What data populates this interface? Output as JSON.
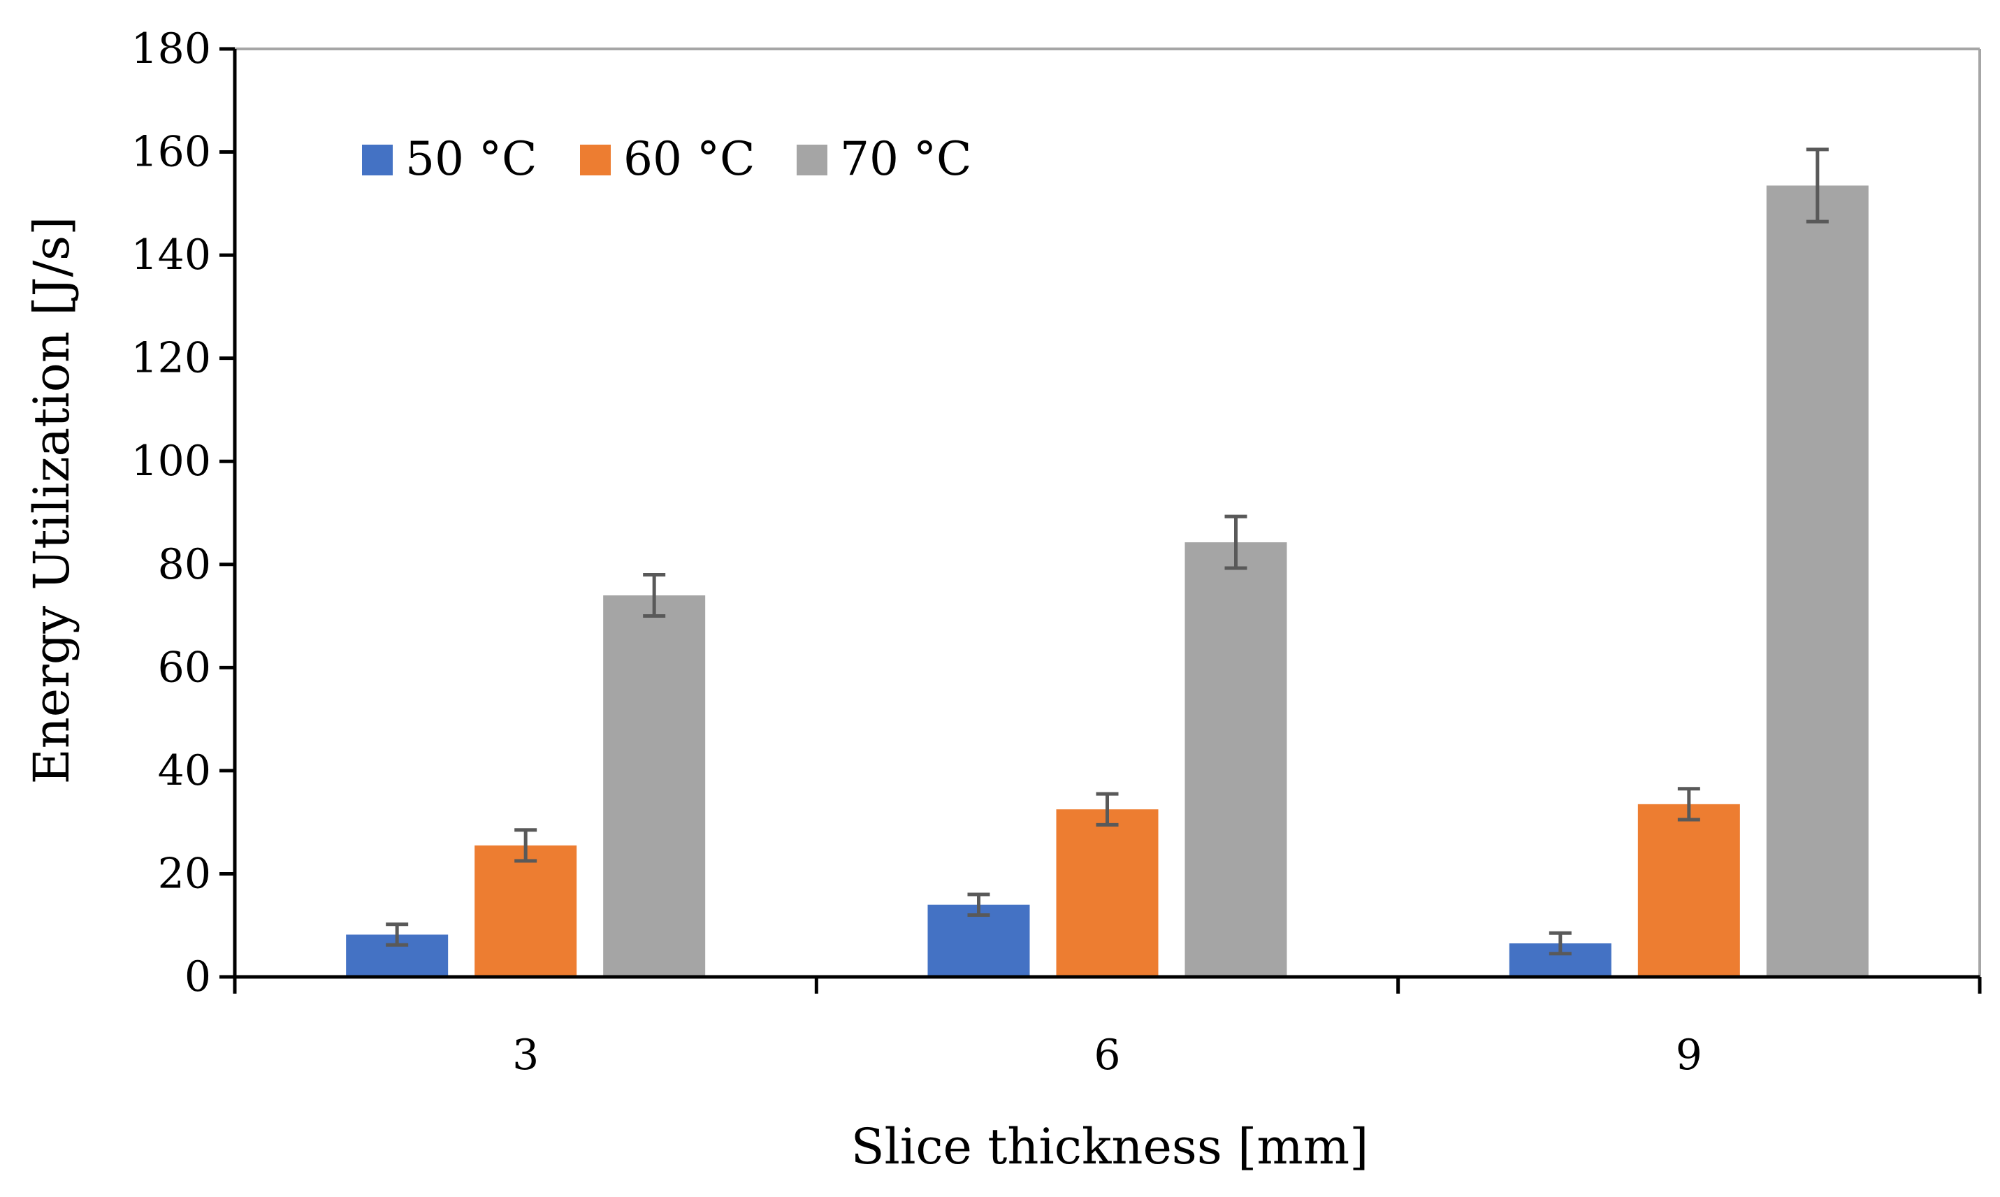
{
  "chart_data": {
    "type": "bar",
    "title": "",
    "xlabel": "Slice thickness [mm]",
    "ylabel": "Energy Utilization [J/s]",
    "ylim": [
      0,
      180
    ],
    "yticks": [
      0,
      20,
      40,
      60,
      80,
      100,
      120,
      140,
      160,
      180
    ],
    "ytick_labels": [
      "0",
      "20",
      "40",
      "60",
      "80",
      "100",
      "120",
      "140",
      "160",
      "180"
    ],
    "categories": [
      "3",
      "6",
      "9"
    ],
    "series": [
      {
        "name": "50 °C",
        "color": "#4472c4",
        "values": [
          8.2,
          14.0,
          6.5
        ],
        "errors": [
          2.0,
          2.0,
          2.0
        ]
      },
      {
        "name": "60 °C",
        "color": "#ed7d31",
        "values": [
          25.5,
          32.5,
          33.5
        ],
        "errors": [
          3.0,
          3.0,
          3.0
        ]
      },
      {
        "name": "70 °C",
        "color": "#a5a5a5",
        "values": [
          74.0,
          84.3,
          153.5
        ],
        "errors": [
          4.0,
          5.0,
          7.0
        ]
      }
    ],
    "legend_position": "top-left",
    "grid": false
  }
}
